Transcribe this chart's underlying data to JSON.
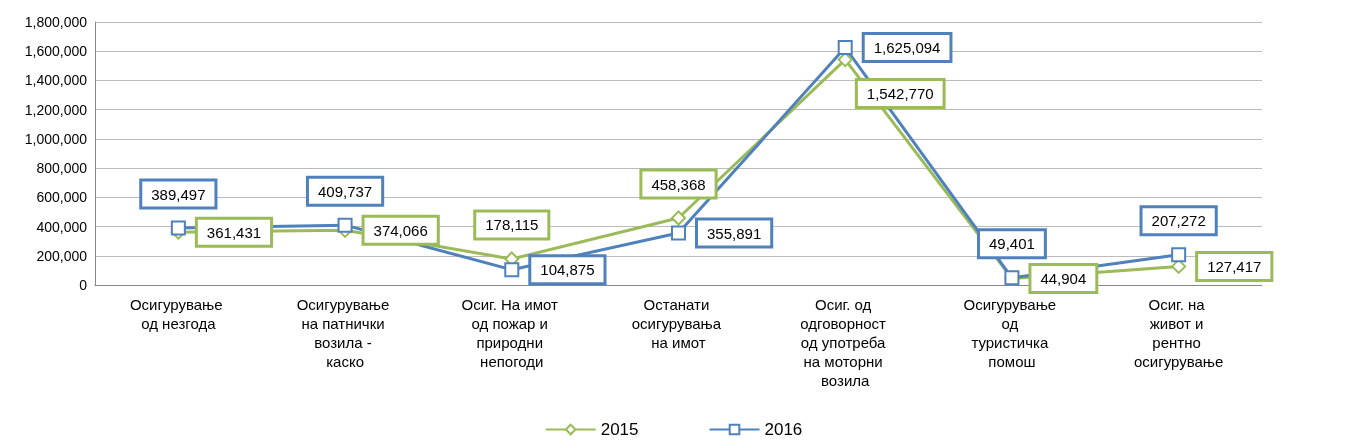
{
  "chart_data": {
    "type": "line",
    "categories": [
      "Осигурување од незгода",
      "Осигурување на патнички возила - каско",
      "Осиг. На имот од пожар и природни непогоди",
      "Останати осигурувања на имот",
      "Осиг. од одговорност од употреба на моторни возила",
      "Осигурување од туристичка помош",
      "Осиг. на живот и рентно осигурување"
    ],
    "series": [
      {
        "name": "2015",
        "color": "#9bbb59",
        "marker": "diamond",
        "values": [
          361431,
          374066,
          178115,
          458368,
          1542770,
          44904,
          127417
        ],
        "value_labels": [
          "361,431",
          "374,066",
          "178,115",
          "458,368",
          "1,542,770",
          "44,904",
          "127,417"
        ]
      },
      {
        "name": "2016",
        "color": "#4f81bd",
        "marker": "square",
        "values": [
          389497,
          409737,
          104875,
          355891,
          1625094,
          49401,
          207272
        ],
        "value_labels": [
          "389,497",
          "409,737",
          "104,875",
          "355,891",
          "1,625,094",
          "49,401",
          "207,272"
        ]
      }
    ],
    "ylim": [
      0,
      1800000
    ],
    "yticks": [
      {
        "value": 0,
        "label": "0"
      },
      {
        "value": 200000,
        "label": "200,000"
      },
      {
        "value": 400000,
        "label": "400,000"
      },
      {
        "value": 600000,
        "label": "600,000"
      },
      {
        "value": 800000,
        "label": "800,000"
      },
      {
        "value": 1000000,
        "label": "1,000,000"
      },
      {
        "value": 1200000,
        "label": "1,200,000"
      },
      {
        "value": 1400000,
        "label": "1,400,000"
      },
      {
        "value": 1600000,
        "label": "1,600,000"
      },
      {
        "value": 1800000,
        "label": "1,800,000"
      }
    ],
    "grid": "y",
    "legend": "bottom"
  }
}
